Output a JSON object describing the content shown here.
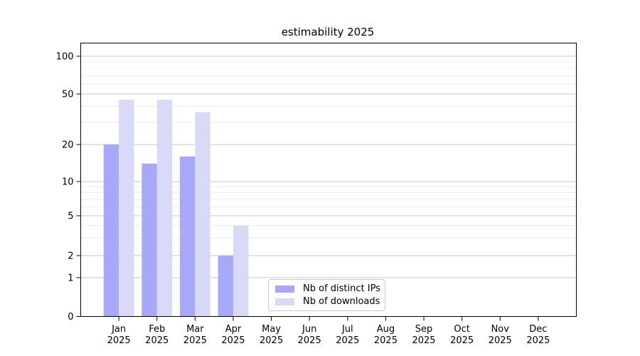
{
  "title": "estimability 2025",
  "legend": {
    "items": [
      {
        "label": "Nb of distinct IPs",
        "color": "#a8a8f8"
      },
      {
        "label": "Nb of downloads",
        "color": "#d9d9f8"
      }
    ]
  },
  "colors": {
    "background": "#ffffff",
    "axis": "#000000",
    "text": "#000000",
    "grid_major": "#c9c9c9",
    "grid_minor": "#ededed",
    "legend_border": "#cccccc"
  },
  "chart_data": {
    "type": "bar",
    "title": "estimability 2025",
    "x": [
      "Jan 2025",
      "Feb 2025",
      "Mar 2025",
      "Apr 2025",
      "May 2025",
      "Jun 2025",
      "Jul 2025",
      "Aug 2025",
      "Sep 2025",
      "Oct 2025",
      "Nov 2025",
      "Dec 2025"
    ],
    "x_months": [
      "Jan",
      "Feb",
      "Mar",
      "Apr",
      "May",
      "Jun",
      "Jul",
      "Aug",
      "Sep",
      "Oct",
      "Nov",
      "Dec"
    ],
    "x_year": "2025",
    "series": [
      {
        "name": "Nb of distinct IPs",
        "color": "#a8a8f8",
        "values": [
          20,
          14,
          16,
          2,
          0,
          0,
          0,
          0,
          0,
          0,
          0,
          0
        ]
      },
      {
        "name": "Nb of downloads",
        "color": "#d9d9f8",
        "values": [
          45,
          45,
          36,
          4,
          0,
          0,
          0,
          0,
          0,
          0,
          0,
          0
        ]
      }
    ],
    "y_scale": "symlog",
    "y_ticks": [
      0,
      1,
      2,
      5,
      10,
      20,
      50,
      100
    ],
    "y_minor_ticks": [
      3,
      4,
      6,
      7,
      8,
      9,
      30,
      40,
      60,
      70,
      80,
      90
    ],
    "ylim": [
      0,
      130
    ],
    "grid": "horizontal-major-and-minor",
    "legend_position": "lower center-left"
  }
}
